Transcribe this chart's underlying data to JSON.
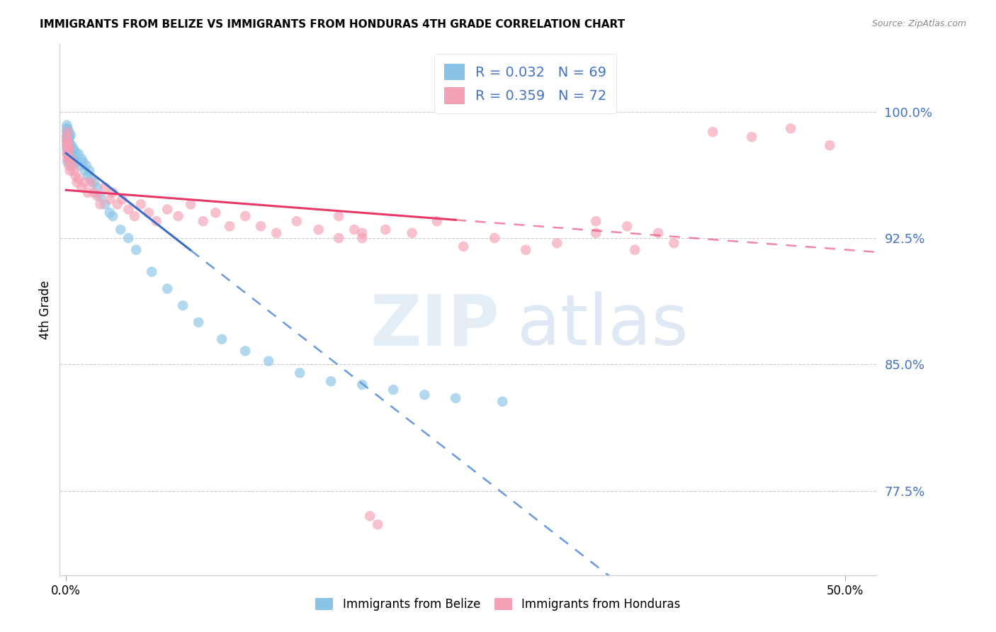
{
  "title": "IMMIGRANTS FROM BELIZE VS IMMIGRANTS FROM HONDURAS 4TH GRADE CORRELATION CHART",
  "source": "Source: ZipAtlas.com",
  "ylabel": "4th Grade",
  "ytick_labels": [
    "100.0%",
    "92.5%",
    "85.0%",
    "77.5%"
  ],
  "ytick_values": [
    1.0,
    0.925,
    0.85,
    0.775
  ],
  "ymin": 0.725,
  "ymax": 1.04,
  "xmin": -0.004,
  "xmax": 0.52,
  "xtick_left": "0.0%",
  "xtick_right": "50.0%",
  "legend_belize_r": "R = 0.032",
  "legend_belize_n": "N = 69",
  "legend_honduras_r": "R = 0.359",
  "legend_honduras_n": "N = 72",
  "color_belize": "#89c4e8",
  "color_honduras": "#f4a0b5",
  "line_color_belize_solid": "#3a6bc4",
  "line_color_belize_dash": "#6699dd",
  "line_color_honduras": "#e83868",
  "legend_label_belize": "Immigrants from Belize",
  "legend_label_honduras": "Immigrants from Honduras",
  "belize_x": [
    0.0005,
    0.0005,
    0.0005,
    0.0005,
    0.0006,
    0.0006,
    0.0006,
    0.0007,
    0.0007,
    0.0008,
    0.0008,
    0.0009,
    0.001,
    0.001,
    0.001,
    0.001,
    0.001,
    0.0012,
    0.0012,
    0.0013,
    0.0015,
    0.0015,
    0.0016,
    0.002,
    0.002,
    0.002,
    0.0022,
    0.0025,
    0.003,
    0.003,
    0.0035,
    0.004,
    0.004,
    0.005,
    0.005,
    0.006,
    0.007,
    0.008,
    0.009,
    0.01,
    0.011,
    0.012,
    0.013,
    0.014,
    0.015,
    0.016,
    0.018,
    0.02,
    0.022,
    0.025,
    0.028,
    0.03,
    0.035,
    0.04,
    0.045,
    0.055,
    0.065,
    0.075,
    0.085,
    0.1,
    0.115,
    0.13,
    0.15,
    0.17,
    0.19,
    0.21,
    0.23,
    0.25,
    0.28
  ],
  "belize_y": [
    0.99,
    0.985,
    0.982,
    0.978,
    0.992,
    0.988,
    0.983,
    0.986,
    0.98,
    0.988,
    0.983,
    0.985,
    0.99,
    0.985,
    0.98,
    0.975,
    0.97,
    0.988,
    0.982,
    0.986,
    0.985,
    0.978,
    0.983,
    0.988,
    0.982,
    0.976,
    0.985,
    0.98,
    0.986,
    0.978,
    0.98,
    0.975,
    0.97,
    0.978,
    0.972,
    0.976,
    0.97,
    0.975,
    0.968,
    0.972,
    0.97,
    0.965,
    0.968,
    0.962,
    0.965,
    0.96,
    0.958,
    0.955,
    0.95,
    0.945,
    0.94,
    0.938,
    0.93,
    0.925,
    0.918,
    0.905,
    0.895,
    0.885,
    0.875,
    0.865,
    0.858,
    0.852,
    0.845,
    0.84,
    0.838,
    0.835,
    0.832,
    0.83,
    0.828
  ],
  "honduras_x": [
    0.0005,
    0.0006,
    0.0007,
    0.0008,
    0.001,
    0.001,
    0.001,
    0.001,
    0.0012,
    0.0013,
    0.0015,
    0.002,
    0.002,
    0.0025,
    0.003,
    0.004,
    0.005,
    0.006,
    0.007,
    0.008,
    0.01,
    0.012,
    0.014,
    0.016,
    0.018,
    0.02,
    0.022,
    0.025,
    0.028,
    0.03,
    0.033,
    0.036,
    0.04,
    0.044,
    0.048,
    0.053,
    0.058,
    0.065,
    0.072,
    0.08,
    0.088,
    0.096,
    0.105,
    0.115,
    0.125,
    0.135,
    0.148,
    0.162,
    0.175,
    0.19,
    0.205,
    0.222,
    0.238,
    0.255,
    0.275,
    0.295,
    0.315,
    0.34,
    0.365,
    0.39,
    0.415,
    0.44,
    0.465,
    0.49,
    0.34,
    0.36,
    0.38,
    0.175,
    0.185,
    0.19,
    0.195,
    0.2
  ],
  "honduras_y": [
    0.985,
    0.98,
    0.975,
    0.982,
    0.988,
    0.982,
    0.978,
    0.972,
    0.98,
    0.975,
    0.972,
    0.978,
    0.968,
    0.965,
    0.972,
    0.968,
    0.965,
    0.962,
    0.958,
    0.96,
    0.955,
    0.958,
    0.952,
    0.958,
    0.952,
    0.95,
    0.945,
    0.955,
    0.948,
    0.952,
    0.945,
    0.948,
    0.942,
    0.938,
    0.945,
    0.94,
    0.935,
    0.942,
    0.938,
    0.945,
    0.935,
    0.94,
    0.932,
    0.938,
    0.932,
    0.928,
    0.935,
    0.93,
    0.938,
    0.925,
    0.93,
    0.928,
    0.935,
    0.92,
    0.925,
    0.918,
    0.922,
    0.928,
    0.918,
    0.922,
    0.988,
    0.985,
    0.99,
    0.98,
    0.935,
    0.932,
    0.928,
    0.925,
    0.93,
    0.928,
    0.76,
    0.755
  ]
}
